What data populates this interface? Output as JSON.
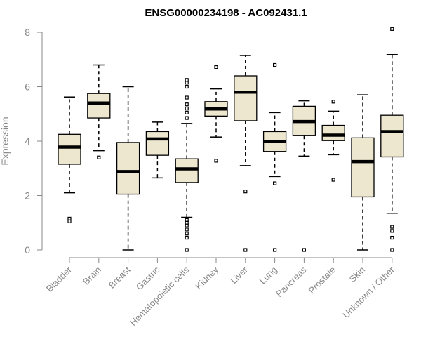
{
  "chart_data": {
    "type": "boxplot",
    "title": "ENSG00000234198 - AC092431.1",
    "ylabel": "Expression",
    "xlabel": "",
    "ylim": [
      0,
      8
    ],
    "yticks": [
      0,
      2,
      4,
      6,
      8
    ],
    "grid": false,
    "colors": {
      "box_fill": "#ede7cf",
      "box_stroke": "#000000",
      "axis": "#888888"
    },
    "categories": [
      "Bladder",
      "Brain",
      "Breast",
      "Gastric",
      "Hematopoietic cells",
      "Kidney",
      "Liver",
      "Lung",
      "Pancreas",
      "Prostate",
      "Skin",
      "Unknown / Other"
    ],
    "boxes": [
      {
        "category": "Bladder",
        "whisker_low": 2.1,
        "q1": 3.15,
        "median": 3.78,
        "q3": 4.25,
        "whisker_high": 5.62,
        "outliers": [
          1.05,
          1.15
        ]
      },
      {
        "category": "Brain",
        "whisker_low": 3.65,
        "q1": 4.85,
        "median": 5.4,
        "q3": 5.75,
        "whisker_high": 6.8,
        "outliers": [
          3.4
        ]
      },
      {
        "category": "Breast",
        "whisker_low": 0.0,
        "q1": 2.05,
        "median": 2.88,
        "q3": 3.95,
        "whisker_high": 6.0,
        "outliers": []
      },
      {
        "category": "Gastric",
        "whisker_low": 2.65,
        "q1": 3.48,
        "median": 4.08,
        "q3": 4.35,
        "whisker_high": 4.7,
        "outliers": []
      },
      {
        "category": "Hematopoietic cells",
        "whisker_low": 1.2,
        "q1": 2.48,
        "median": 2.98,
        "q3": 3.35,
        "whisker_high": 4.65,
        "outliers": [
          0.0,
          0.45,
          0.6,
          0.75,
          0.9,
          1.0,
          1.1,
          4.85,
          5.05,
          5.2,
          5.35,
          5.6,
          6.0,
          6.15,
          6.25
        ]
      },
      {
        "category": "Kidney",
        "whisker_low": 4.15,
        "q1": 4.92,
        "median": 5.18,
        "q3": 5.45,
        "whisker_high": 5.92,
        "outliers": [
          3.28,
          6.72
        ]
      },
      {
        "category": "Liver",
        "whisker_low": 3.1,
        "q1": 4.75,
        "median": 5.8,
        "q3": 6.4,
        "whisker_high": 7.15,
        "outliers": [
          0.0,
          2.15
        ]
      },
      {
        "category": "Lung",
        "whisker_low": 2.7,
        "q1": 3.62,
        "median": 3.98,
        "q3": 4.35,
        "whisker_high": 5.05,
        "outliers": [
          0.0,
          2.45,
          6.8
        ]
      },
      {
        "category": "Pancreas",
        "whisker_low": 3.45,
        "q1": 4.2,
        "median": 4.72,
        "q3": 5.28,
        "whisker_high": 5.48,
        "outliers": [
          0.0
        ]
      },
      {
        "category": "Prostate",
        "whisker_low": 3.5,
        "q1": 4.02,
        "median": 4.22,
        "q3": 4.58,
        "whisker_high": 5.1,
        "outliers": [
          2.58,
          5.45
        ]
      },
      {
        "category": "Skin",
        "whisker_low": 0.0,
        "q1": 1.95,
        "median": 3.25,
        "q3": 4.12,
        "whisker_high": 5.7,
        "outliers": []
      },
      {
        "category": "Unknown / Other",
        "whisker_low": 1.35,
        "q1": 3.42,
        "median": 4.35,
        "q3": 4.95,
        "whisker_high": 7.18,
        "outliers": [
          0.0,
          0.45,
          0.7,
          0.85,
          8.12
        ]
      }
    ]
  }
}
